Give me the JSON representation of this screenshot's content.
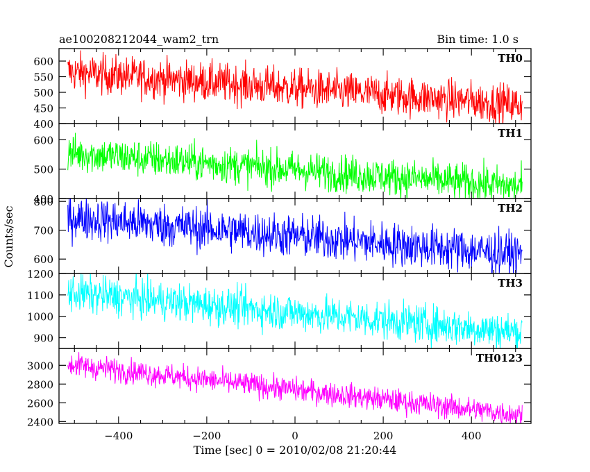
{
  "chart_data": {
    "type": "line",
    "title": "ae100208212044_wam2_trn",
    "subtitle": "Bin time: 1.0 s",
    "xlabel": "Time [sec] 0 = 2010/02/08 21:20:44",
    "ylabel": "Counts/sec",
    "xlim": [
      -535,
      535
    ],
    "xticks": [
      -400,
      -200,
      0,
      200,
      400
    ],
    "grid": false,
    "x_range": [
      -515,
      515
    ],
    "panels": [
      {
        "name": "TH0",
        "color": "#ff0000",
        "ylim": [
          400,
          640
        ],
        "yticks": [
          400,
          450,
          500,
          550,
          600
        ],
        "trend_start": 565,
        "trend_end": 460,
        "noise": 32,
        "series": [
          {
            "x": [
              -515,
              515
            ],
            "values": [
              565,
              460
            ]
          }
        ]
      },
      {
        "name": "TH1",
        "color": "#00ff00",
        "ylim": [
          400,
          655
        ],
        "yticks": [
          400,
          500,
          600
        ],
        "trend_start": 555,
        "trend_end": 440,
        "noise": 32,
        "series": [
          {
            "x": [
              -515,
              515
            ],
            "values": [
              555,
              440
            ]
          }
        ]
      },
      {
        "name": "TH2",
        "color": "#0000ff",
        "ylim": [
          550,
          810
        ],
        "yticks": [
          600,
          700,
          800
        ],
        "trend_start": 745,
        "trend_end": 615,
        "noise": 38,
        "series": [
          {
            "x": [
              -515,
              515
            ],
            "values": [
              745,
              615
            ]
          }
        ]
      },
      {
        "name": "TH3",
        "color": "#00ffff",
        "ylim": [
          850,
          1200
        ],
        "yticks": [
          900,
          1000,
          1100,
          1200
        ],
        "trend_start": 1110,
        "trend_end": 925,
        "noise": 45,
        "series": [
          {
            "x": [
              -515,
              515
            ],
            "values": [
              1110,
              925
            ]
          }
        ]
      },
      {
        "name": "TH0123",
        "color": "#ff00ff",
        "ylim": [
          2380,
          3180
        ],
        "yticks": [
          2400,
          2600,
          2800,
          3000
        ],
        "trend_start": 3010,
        "trend_end": 2470,
        "noise": 65,
        "series": [
          {
            "x": [
              -515,
              515
            ],
            "values": [
              3010,
              2470
            ]
          }
        ]
      }
    ]
  }
}
